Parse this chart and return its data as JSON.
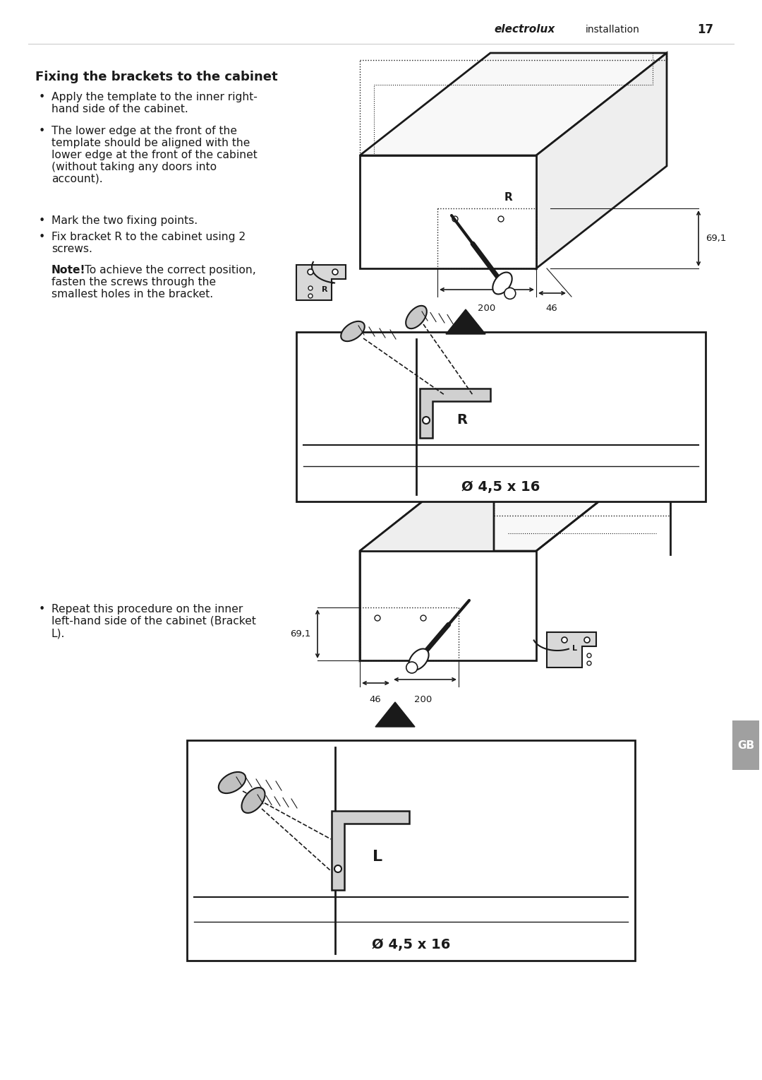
{
  "bg": "#ffffff",
  "lc": "#1a1a1a",
  "header_brand": "electrolux",
  "header_section": "installation",
  "header_page": "17",
  "title": "Fixing the brackets to the cabinet",
  "bullet1a": "Apply the template to the inner right-",
  "bullet1b": "hand side of the cabinet.",
  "bullet2a": "The lower edge at the front of the",
  "bullet2b": "template should be aligned with the",
  "bullet2c": "lower edge at the front of the cabinet",
  "bullet2d": "(without taking any doors into",
  "bullet2e": "account).",
  "bullet3": "Mark the two fixing points.",
  "bullet4a": "Fix bracket R to the cabinet using 2",
  "bullet4b": "screws.",
  "note_bold": "Note!",
  "note1": " To achieve the correct position,",
  "note2": "fasten the screws through the",
  "note3": "smallest holes in the bracket.",
  "bullet5a": "Repeat this procedure on the inner",
  "bullet5b": "left-hand side of the cabinet (Bracket",
  "bullet5c": "L).",
  "screw_spec": "Ø 4,5 x 16",
  "dim_69": "69,1",
  "dim_200": "200",
  "dim_46": "46",
  "tab_gb": "GB"
}
